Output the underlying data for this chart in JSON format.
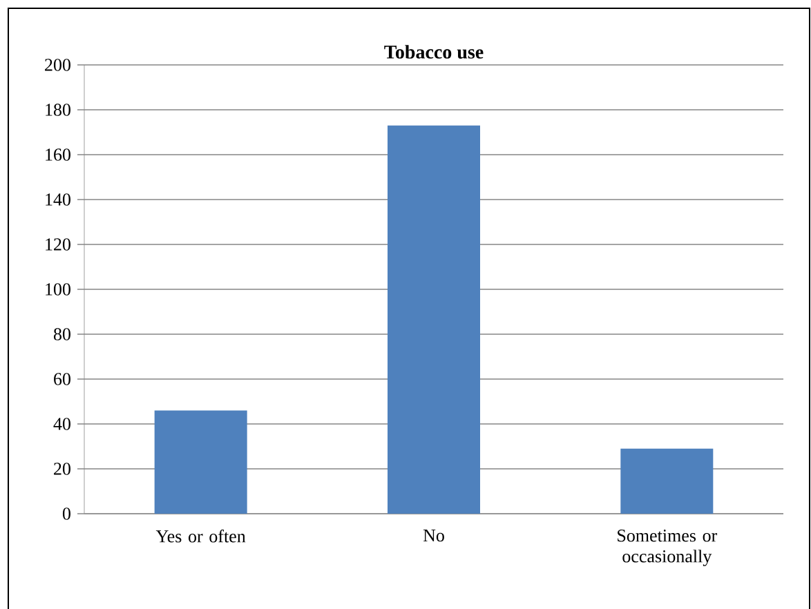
{
  "chart_data": {
    "type": "bar",
    "title": "Tobacco use",
    "categories": [
      "Yes or often",
      "No",
      "Sometimes or occasionally"
    ],
    "values": [
      46,
      173,
      29
    ],
    "color": "#4f81bd",
    "ylim": [
      0,
      200
    ],
    "yticks": [
      0,
      20,
      40,
      60,
      80,
      100,
      120,
      140,
      160,
      180,
      200
    ],
    "grid": "y"
  }
}
